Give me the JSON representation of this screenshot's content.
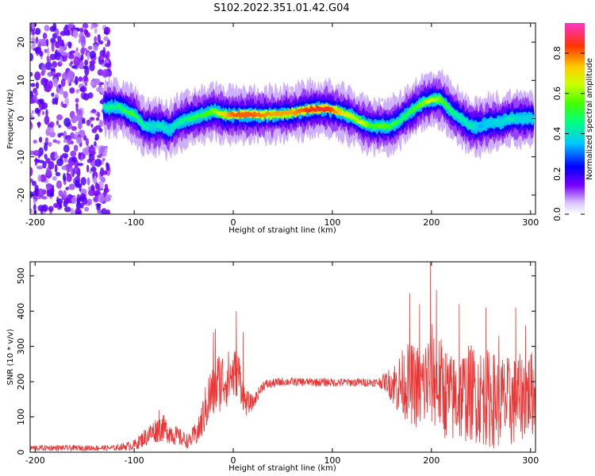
{
  "title": "S102.2022.351.01.42.G04",
  "chart_data": [
    {
      "type": "heatmap",
      "xlabel": "Height of straight line (km)",
      "ylabel": "Frequency (Hz)",
      "xlim": [
        -205,
        305
      ],
      "ylim": [
        -25,
        25
      ],
      "xticks": [
        -200,
        -100,
        0,
        100,
        200,
        300
      ],
      "yticks": [
        -20,
        -10,
        0,
        10,
        20
      ],
      "colorbar": {
        "label": "Normalized spectral amplitude",
        "range": [
          0.0,
          0.95
        ],
        "ticks": [
          0.0,
          0.2,
          0.4,
          0.6,
          0.8
        ],
        "tick_labels": [
          "0.0",
          "0.2",
          "0.4",
          "0.6",
          "0.8"
        ]
      },
      "ridge": {
        "x": [
          -130,
          -115,
          -100,
          -90,
          -80,
          -72,
          -65,
          -55,
          -45,
          -30,
          -20,
          -10,
          0,
          20,
          40,
          60,
          80,
          95,
          110,
          120,
          130,
          140,
          150,
          160,
          170,
          180,
          190,
          200,
          210,
          220,
          230,
          240,
          250,
          260,
          270,
          280,
          290,
          300
        ],
        "y": [
          3,
          3,
          1,
          -2,
          -2,
          -2,
          -3,
          -1,
          0,
          1,
          2,
          1,
          1,
          1,
          1,
          1.5,
          2.5,
          2.5,
          1.5,
          0.5,
          -1,
          -2,
          -2,
          -2,
          0,
          2,
          4,
          5,
          5,
          2,
          0,
          -2,
          -2,
          -1,
          -1,
          0,
          0,
          0
        ],
        "peak": [
          0.45,
          0.5,
          0.55,
          0.45,
          0.4,
          0.45,
          0.4,
          0.45,
          0.5,
          0.55,
          0.6,
          0.75,
          0.85,
          0.85,
          0.8,
          0.8,
          0.9,
          0.9,
          0.75,
          0.65,
          0.7,
          0.55,
          0.6,
          0.55,
          0.5,
          0.55,
          0.6,
          0.7,
          0.6,
          0.5,
          0.45,
          0.45,
          0.35,
          0.4,
          0.4,
          0.45,
          0.4,
          0.4
        ]
      },
      "noise_region": {
        "x": [
          -205,
          -125
        ],
        "level": 0.2
      }
    },
    {
      "type": "line",
      "xlabel": "Height of straight line (km)",
      "ylabel": "SNR (10 * v/v)",
      "xlim": [
        -205,
        305
      ],
      "ylim": [
        0,
        540
      ],
      "xticks": [
        -200,
        -100,
        0,
        100,
        200,
        300
      ],
      "yticks": [
        0,
        100,
        200,
        300,
        400,
        500
      ],
      "color": "#ee3333",
      "envelope": [
        {
          "x": -205,
          "mean": 12,
          "amp": 8
        },
        {
          "x": -120,
          "mean": 12,
          "amp": 8
        },
        {
          "x": -100,
          "mean": 20,
          "amp": 15
        },
        {
          "x": -90,
          "mean": 40,
          "amp": 25
        },
        {
          "x": -80,
          "mean": 60,
          "amp": 35
        },
        {
          "x": -72,
          "mean": 70,
          "amp": 40
        },
        {
          "x": -60,
          "mean": 50,
          "amp": 30
        },
        {
          "x": -45,
          "mean": 30,
          "amp": 20
        },
        {
          "x": -35,
          "mean": 60,
          "amp": 40
        },
        {
          "x": -25,
          "mean": 150,
          "amp": 80
        },
        {
          "x": -15,
          "mean": 200,
          "amp": 90
        },
        {
          "x": -5,
          "mean": 210,
          "amp": 80
        },
        {
          "x": 5,
          "mean": 230,
          "amp": 70
        },
        {
          "x": 12,
          "mean": 140,
          "amp": 40
        },
        {
          "x": 20,
          "mean": 140,
          "amp": 20
        },
        {
          "x": 30,
          "mean": 190,
          "amp": 15
        },
        {
          "x": 50,
          "mean": 200,
          "amp": 12
        },
        {
          "x": 100,
          "mean": 198,
          "amp": 12
        },
        {
          "x": 145,
          "mean": 198,
          "amp": 12
        },
        {
          "x": 155,
          "mean": 200,
          "amp": 30
        },
        {
          "x": 165,
          "mean": 190,
          "amp": 80
        },
        {
          "x": 175,
          "mean": 200,
          "amp": 110
        },
        {
          "x": 190,
          "mean": 180,
          "amp": 130
        },
        {
          "x": 200,
          "mean": 220,
          "amp": 150
        },
        {
          "x": 220,
          "mean": 150,
          "amp": 130
        },
        {
          "x": 240,
          "mean": 170,
          "amp": 140
        },
        {
          "x": 260,
          "mean": 150,
          "amp": 140
        },
        {
          "x": 280,
          "mean": 140,
          "amp": 130
        },
        {
          "x": 300,
          "mean": 170,
          "amp": 120
        },
        {
          "x": 305,
          "mean": 160,
          "amp": 120
        }
      ],
      "spikes": [
        {
          "x": -75,
          "y": 120
        },
        {
          "x": -20,
          "y": 340
        },
        {
          "x": -18,
          "y": 350
        },
        {
          "x": 3,
          "y": 400
        },
        {
          "x": 10,
          "y": 340
        },
        {
          "x": 178,
          "y": 450
        },
        {
          "x": 188,
          "y": 420
        },
        {
          "x": 199,
          "y": 545
        },
        {
          "x": 205,
          "y": 460
        },
        {
          "x": 228,
          "y": 420
        },
        {
          "x": 255,
          "y": 410
        },
        {
          "x": 268,
          "y": 330
        },
        {
          "x": 285,
          "y": 410
        },
        {
          "x": 295,
          "y": 360
        }
      ]
    }
  ]
}
